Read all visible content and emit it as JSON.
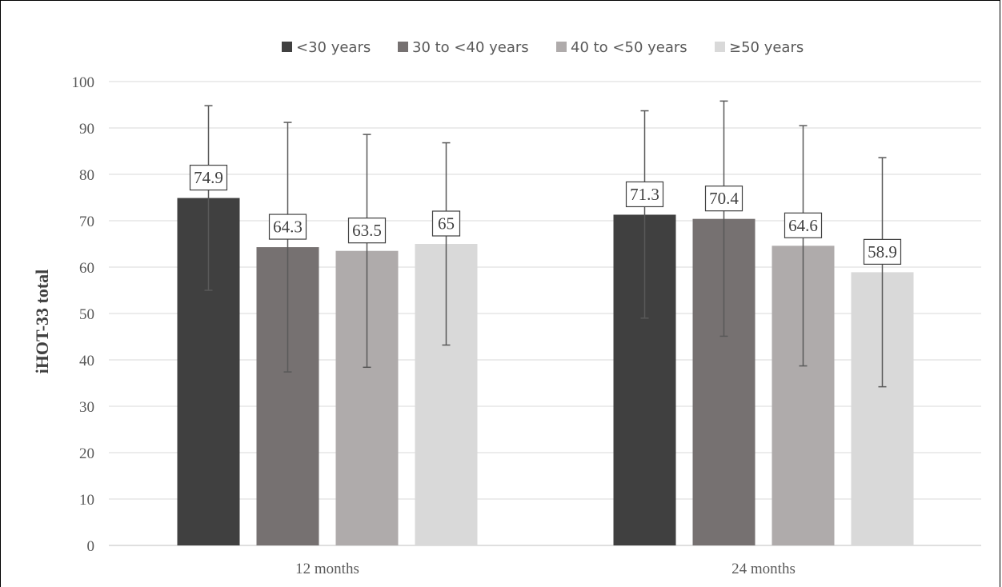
{
  "chart_data": {
    "type": "bar",
    "ylabel": "iHOT-33 total",
    "xlabel": "",
    "ylim": [
      0,
      100
    ],
    "yticks": [
      0,
      10,
      20,
      30,
      40,
      50,
      60,
      70,
      80,
      90,
      100
    ],
    "grid": true,
    "legend_position": "top",
    "categories": [
      "12 months",
      "24 months"
    ],
    "series": [
      {
        "name": "<30 years",
        "color": "#404040",
        "values": [
          74.9,
          71.3
        ],
        "error_low": [
          55.0,
          49.0
        ],
        "error_high": [
          94.8,
          93.7
        ]
      },
      {
        "name": "30 to <40 years",
        "color": "#767171",
        "values": [
          64.3,
          70.4
        ],
        "error_low": [
          37.4,
          45.1
        ],
        "error_high": [
          91.2,
          95.8
        ]
      },
      {
        "name": "40 to <50 years",
        "color": "#AFABAB",
        "values": [
          63.5,
          64.6
        ],
        "error_low": [
          38.4,
          38.7
        ],
        "error_high": [
          88.6,
          90.5
        ]
      },
      {
        "name": "≥50 years",
        "color": "#D9D9D9",
        "values": [
          65,
          58.9
        ],
        "error_low": [
          43.2,
          34.2
        ],
        "error_high": [
          86.8,
          83.6
        ]
      }
    ],
    "data_labels": [
      [
        "74.9",
        "71.3"
      ],
      [
        "64.3",
        "70.4"
      ],
      [
        "63.5",
        "64.6"
      ],
      [
        "65",
        "58.9"
      ]
    ]
  }
}
